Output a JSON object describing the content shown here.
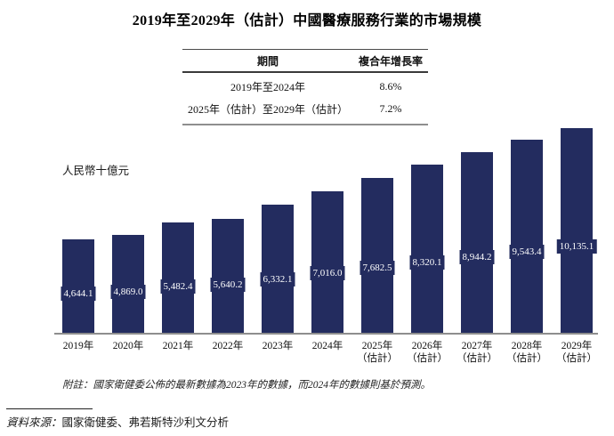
{
  "title": "2019年至2029年（估計）中國醫療服務行業的市場規模",
  "cagr_table": {
    "headers": {
      "period": "期間",
      "cagr": "複合年增長率"
    },
    "rows": [
      {
        "period": "2019年至2024年",
        "cagr": "8.6%"
      },
      {
        "period": "2025年（估計）至2029年（估計）",
        "cagr": "7.2%"
      }
    ]
  },
  "chart_data": {
    "type": "bar",
    "title": "2019年至2029年（估計）中國醫療服務行業的市場規模",
    "ylabel": "人民幣十億元",
    "categories": [
      "2019年",
      "2020年",
      "2021年",
      "2022年",
      "2023年",
      "2024年",
      "2025年（估計）",
      "2026年（估計）",
      "2027年（估計）",
      "2028年（估計）",
      "2029年（估計）"
    ],
    "values": [
      4644.1,
      4869.0,
      5482.4,
      5640.2,
      6332.1,
      7016.0,
      7682.5,
      8320.1,
      8944.2,
      9543.4,
      10135.1
    ],
    "value_labels": [
      "4,644.1",
      "4,869.0",
      "5,482.4",
      "5,640.2",
      "6,332.1",
      "7,016.0",
      "7,682.5",
      "8,320.1",
      "8,944.2",
      "9,543.4",
      "10,135.1"
    ],
    "estimate_suffix": "（估計）",
    "ylim": [
      0,
      10135.1
    ],
    "grid": false,
    "legend": "none",
    "bar_color": "#232C5F",
    "bar_label_text_color": "#ffffff",
    "axis_line_color": "#8e8e8e"
  },
  "footnote": "附註：國家衛健委公佈的最新數據為2023年的數據，而2024年的數據則基於預測。",
  "source": {
    "prefix": "資料來源：",
    "text": "國家衛健委、弗若斯特沙利文分析"
  }
}
